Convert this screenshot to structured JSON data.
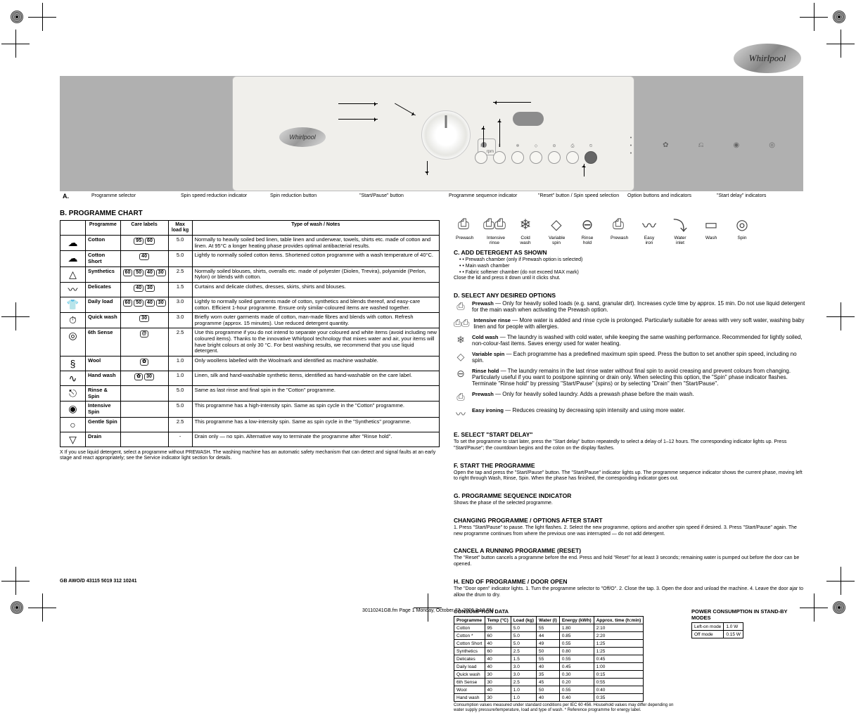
{
  "brand": "Whirlpool",
  "doc": {
    "ref_line": "GB      AWO/D 43115      5019 312 10241",
    "file_line": "30110241GB.fm  Page 1  Monday, October 23, 2006  3:12 PM"
  },
  "panel_callouts": {
    "header": "A.",
    "items": [
      "Programme selector",
      "Spin speed reduction indicator",
      "Spin reduction button",
      "\"Start/Pause\" button",
      "Programme sequence indicator",
      "\"Reset\" button / Spin speed selection",
      "Option buttons and indicators",
      "\"Start delay\" indicators"
    ]
  },
  "symbol_labels": [
    "Prewash",
    "Intensive rinse",
    "Cold wash",
    "Variable spin",
    "Rinse hold",
    "Prewash",
    "Easy iron",
    "Water inlet",
    "Wash",
    "Spin"
  ],
  "programmes_table": {
    "title": "B. PROGRAMME CHART",
    "headers": [
      "",
      "Programme",
      "Care labels",
      "Max load  kg",
      "Type of wash / Notes"
    ],
    "rows": [
      {
        "icon": "☁",
        "name": "Cotton",
        "temps": [
          "95",
          "60"
        ],
        "load": "5.0",
        "desc": "Normally to heavily soiled bed linen, table linen and underwear, towels, shirts etc. made of cotton and linen. At 95°C a longer heating phase provides optimal antibacterial results."
      },
      {
        "icon": "☁",
        "name": "Cotton Short",
        "temps": [
          "40"
        ],
        "load": "5.0",
        "desc": "Lightly to normally soiled cotton items. Shortened cotton programme with a wash temperature of 40°C."
      },
      {
        "icon": "△",
        "name": "Synthetics",
        "temps": [
          "60",
          "50",
          "40",
          "30"
        ],
        "load": "2.5",
        "desc": "Normally soiled blouses, shirts, overalls etc. made of polyester (Diolen, Trevira), polyamide (Perlon, Nylon) or blends with cotton."
      },
      {
        "icon": "〰",
        "name": "Delicates",
        "temps": [
          "40",
          "30"
        ],
        "load": "1.5",
        "desc": "Curtains and delicate clothes, dresses, skirts, shirts and blouses."
      },
      {
        "icon": "👕",
        "name": "Daily load",
        "temps": [
          "60",
          "50",
          "40",
          "30"
        ],
        "load": "3.0",
        "desc": "Lightly to normally soiled garments made of cotton, synthetics and blends thereof, and easy-care cotton. Efficient 1-hour programme. Ensure only similar-coloured items are washed together."
      },
      {
        "icon": "⏱",
        "name": "Quick wash",
        "temps": [
          "30"
        ],
        "load": "3.0",
        "desc": "Briefly worn outer garments made of cotton, man-made fibres and blends with cotton. Refresh programme (approx. 15 minutes). Use reduced detergent quantity."
      },
      {
        "icon": "◎",
        "name": "6th Sense",
        "temps": [
          "@"
        ],
        "load": "2.5",
        "desc": "Use this programme if you do not intend to separate your coloured and white items (avoid including new coloured items). Thanks to the innovative Whirlpool technology that mixes water and air, your items will have bright colours at only 30 °C. For best washing results, we recommend that you use liquid detergent."
      },
      {
        "icon": "§",
        "name": "Wool",
        "temps": [
          "✿"
        ],
        "load": "1.0",
        "desc": "Only woollens labelled with the Woolmark and identified as machine washable."
      },
      {
        "icon": "∿",
        "name": "Hand wash",
        "temps": [
          "✿",
          "30"
        ],
        "load": "1.0",
        "desc": "Linen, silk and hand-washable synthetic items, identified as hand-washable on the care label."
      },
      {
        "icon": "⎋",
        "name": "Rinse & Spin",
        "temps": [
          ""
        ],
        "load": "5.0",
        "desc": "Same as last rinse and final spin in the \"Cotton\" programme."
      },
      {
        "icon": "◉",
        "name": "Intensive Spin",
        "temps": [
          ""
        ],
        "load": "5.0",
        "desc": "This programme has a high-intensity spin. Same as spin cycle in the \"Cotton\" programme."
      },
      {
        "icon": "○",
        "name": "Gentle Spin",
        "temps": [
          ""
        ],
        "load": "2.5",
        "desc": "This programme has a low-intensity spin. Same as spin cycle in the \"Synthetics\" programme."
      },
      {
        "icon": "▽",
        "name": "Drain",
        "temps": [
          ""
        ],
        "load": "-",
        "desc": "Drain only — no spin. Alternative way to terminate the programme after \"Rinse hold\"."
      }
    ],
    "footnote": "X  If you use liquid detergent, select a programme without PREWASH.\n    The washing machine has an automatic safety mechanism that can detect and signal faults at an early stage and react appropriately; see the Service indicator light section for details."
  },
  "right_column": {
    "detergent": {
      "title": "C. ADD DETERGENT AS SHOWN",
      "lines": [
        "• Prewash chamber (only if Prewash option is selected)",
        "• Main wash chamber",
        "• Fabric softener chamber (do not exceed MAX mark)"
      ],
      "note": "Close the lid and press it down until it clicks shut."
    },
    "options_header": "D. SELECT ANY DESIRED OPTIONS",
    "options": [
      {
        "icon": "⎙",
        "name": "Prewash",
        "text": "Only for heavily soiled loads (e.g. sand, granular dirt). Increases cycle time by approx. 15 min. Do not use liquid detergent for the main wash when activating the Prewash option."
      },
      {
        "icon": "⎙⎙",
        "name": "Intensive rinse",
        "text": "More water is added and rinse cycle is prolonged. Particularly suitable for areas with very soft water, washing baby linen and for people with allergies."
      },
      {
        "icon": "❄",
        "name": "Cold wash",
        "text": "The laundry is washed with cold water, while keeping the same washing performance. Recommended for lightly soiled, non-colour-fast items. Saves energy used for water heating."
      },
      {
        "icon": "◇",
        "name": "Variable spin",
        "text": "Each programme has a predefined maximum spin speed. Press the button to set another spin speed, including no spin."
      },
      {
        "icon": "⊖",
        "name": "Rinse hold",
        "text": "The laundry remains in the last rinse water without final spin to avoid creasing and prevent colours from changing. Particularly useful if you want to postpone spinning or drain only. When selecting this option, the \"Spin\" phase indicator flashes. Terminate \"Rinse hold\" by pressing \"Start/Pause\" (spins) or by selecting \"Drain\" then \"Start/Pause\"."
      },
      {
        "icon": "⎙",
        "name": "Prewash",
        "text": "Only for heavily soiled laundry. Adds a prewash phase before the main wash."
      },
      {
        "icon": "〰",
        "name": "Easy ironing",
        "text": "Reduces creasing by decreasing spin intensity and using more water."
      }
    ],
    "start_delay": {
      "title": "E. SELECT \"START DELAY\"",
      "text": "To set the programme to start later, press the \"Start delay\" button repeatedly to select a delay of 1–12 hours. The corresponding indicator lights up. Press \"Start/Pause\"; the countdown begins and the colon on the display flashes."
    },
    "start": {
      "title": "F. START THE PROGRAMME",
      "text": "Open the tap and press the \"Start/Pause\" button. The \"Start/Pause\" indicator lights up. The programme sequence indicator shows the current phase, moving left to right through Wash, Rinse, Spin. When the phase has finished, the corresponding indicator goes out."
    },
    "seq": {
      "title": "G. PROGRAMME SEQUENCE INDICATOR",
      "text": "Shows the phase of the selected programme."
    },
    "change": {
      "title": "CHANGING PROGRAMME / OPTIONS AFTER START",
      "text": "1. Press \"Start/Pause\" to pause. The light flashes. 2. Select the new programme, options and another spin speed if desired. 3. Press \"Start/Pause\" again. The new programme continues from where the previous one was interrupted — do not add detergent."
    },
    "cancel": {
      "title": "CANCEL A RUNNING PROGRAMME (RESET)",
      "text": "The \"Reset\" button cancels a programme before the end. Press and hold \"Reset\" for at least 3 seconds; remaining water is pumped out before the door can be opened."
    },
    "end": {
      "title": "H. END OF PROGRAMME / DOOR OPEN",
      "text": "The \"Door open\" indicator lights. 1. Turn the programme selector to \"Off/O\". 2. Close the tap. 3. Open the door and unload the machine. 4. Leave the door ajar to allow the drum to dry."
    },
    "consumption_table": {
      "title": "CONSUMPTION DATA",
      "headers": [
        "Programme",
        "Temp (°C)",
        "Load (kg)",
        "Water (l)",
        "Energy (kWh)",
        "Approx. time (h:min)"
      ],
      "rows": [
        [
          "Cotton",
          "95",
          "5.0",
          "55",
          "1.80",
          "2:10"
        ],
        [
          "Cotton *",
          "60",
          "5.0",
          "44",
          "0.85",
          "2:20"
        ],
        [
          "Cotton Short",
          "40",
          "5.0",
          "49",
          "0.55",
          "1:25"
        ],
        [
          "Synthetics",
          "60",
          "2.5",
          "50",
          "0.80",
          "1:25"
        ],
        [
          "Delicates",
          "40",
          "1.5",
          "55",
          "0.55",
          "0:45"
        ],
        [
          "Daily load",
          "40",
          "3.0",
          "40",
          "0.45",
          "1:00"
        ],
        [
          "Quick wash",
          "30",
          "3.0",
          "35",
          "0.30",
          "0:15"
        ],
        [
          "6th Sense",
          "30",
          "2.5",
          "45",
          "0.20",
          "0:55"
        ],
        [
          "Wool",
          "40",
          "1.0",
          "50",
          "0.55",
          "0:40"
        ],
        [
          "Hand wash",
          "30",
          "1.0",
          "40",
          "0.40",
          "0:35"
        ]
      ],
      "note": "Consumption values measured under standard conditions per IEC 60 456. Household values may differ depending on water supply pressure/temperature, load and type of wash. * Reference programme for energy label."
    },
    "power_table": {
      "title": "POWER CONSUMPTION IN STAND-BY MODES",
      "rows": [
        [
          "Left-on mode",
          "1.0 W"
        ],
        [
          "Off mode",
          "0.15 W"
        ]
      ]
    }
  }
}
